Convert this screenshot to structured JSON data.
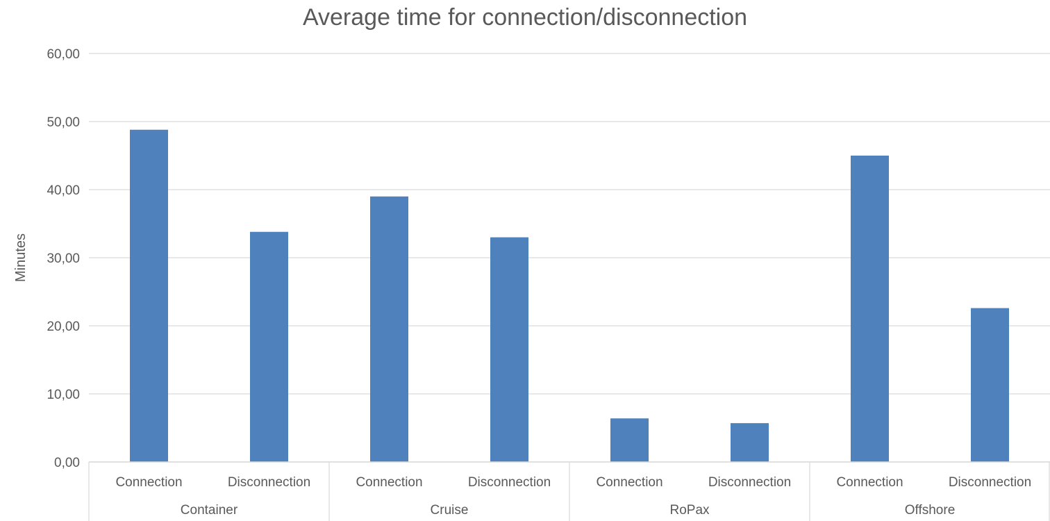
{
  "chart_data": {
    "type": "bar",
    "title": "Average time for connection/disconnection",
    "ylabel": "Minutes",
    "xlabel": "",
    "ylim": [
      0,
      60
    ],
    "yticks": [
      "0,00",
      "10,00",
      "20,00",
      "30,00",
      "40,00",
      "50,00",
      "60,00"
    ],
    "grid": true,
    "groups": [
      {
        "name": "Container",
        "categories": [
          "Connection",
          "Disconnection"
        ],
        "values": [
          48.8,
          33.8
        ]
      },
      {
        "name": "Cruise",
        "categories": [
          "Connection",
          "Disconnection"
        ],
        "values": [
          39.0,
          33.0
        ]
      },
      {
        "name": "RoPax",
        "categories": [
          "Connection",
          "Disconnection"
        ],
        "values": [
          6.4,
          5.7
        ]
      },
      {
        "name": "Offshore",
        "categories": [
          "Connection",
          "Disconnection"
        ],
        "values": [
          45.0,
          22.6
        ]
      }
    ],
    "bar_color": "#4F81BD"
  }
}
